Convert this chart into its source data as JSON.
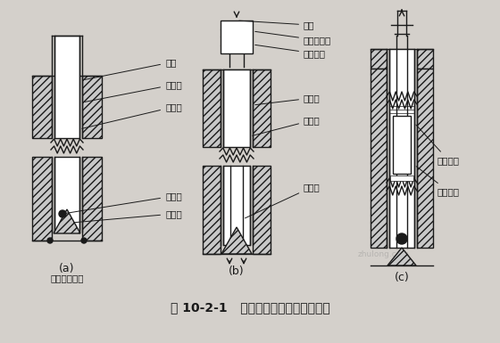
{
  "bg_color": "#d4d0cb",
  "fig_bg": "#d4d0cb",
  "title": "图 10-2-1   辅助杆压人式标志埋设步骤",
  "title_fontsize": 10,
  "label_fontsize": 7.5,
  "sub_labels": [
    "(a)",
    "(b)",
    "(c)"
  ],
  "lw": 1.0,
  "black": "#1a1a1a"
}
